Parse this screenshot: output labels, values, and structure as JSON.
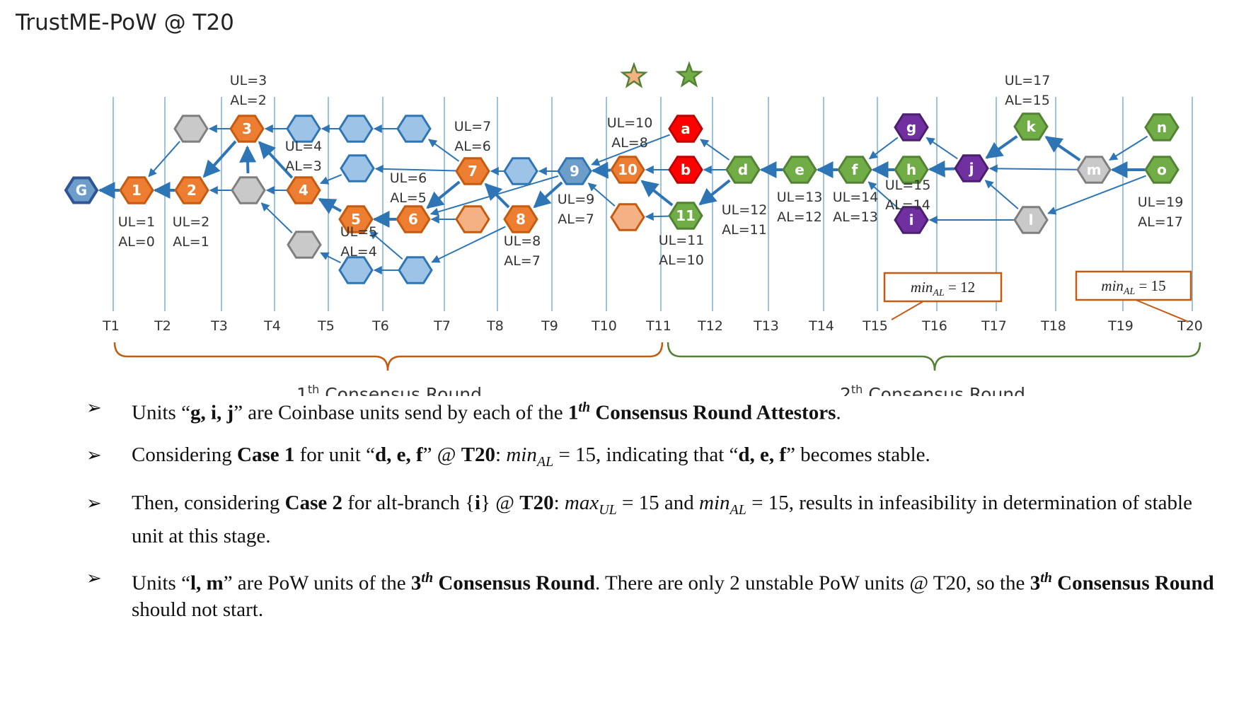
{
  "title": "TrustME-PoW @ T20",
  "time_ticks": [
    "T1",
    "T2",
    "T3",
    "T4",
    "T5",
    "T6",
    "T7",
    "T8",
    "T9",
    "T10",
    "T11",
    "T12",
    "T13",
    "T14",
    "T15",
    "T16",
    "T17",
    "T18",
    "T19",
    "T20"
  ],
  "units": {
    "genesis": "G",
    "u1": "1",
    "u2": "2",
    "u3": "3",
    "u4": "4",
    "u5": "5",
    "u6": "6",
    "u7": "7",
    "u8": "8",
    "u9": "9",
    "u10": "10",
    "u11": "11",
    "a": "a",
    "b": "b",
    "d": "d",
    "e": "e",
    "f": "f",
    "g": "g",
    "h": "h",
    "i": "i",
    "j": "j",
    "k": "k",
    "l": "l",
    "m": "m",
    "n": "n",
    "o": "o"
  },
  "labels": {
    "u1": [
      "UL=1",
      "AL=0"
    ],
    "u2": [
      "UL=2",
      "AL=1"
    ],
    "u3": [
      "UL=3",
      "AL=2"
    ],
    "u4": [
      "UL=4",
      "AL=3"
    ],
    "u5": [
      "UL=5",
      "AL=4"
    ],
    "u6": [
      "UL=6",
      "AL=5"
    ],
    "u7": [
      "UL=7",
      "AL=6"
    ],
    "u8": [
      "UL=8",
      "AL=7"
    ],
    "u9": [
      "UL=9",
      "AL=7"
    ],
    "u10": [
      "UL=10",
      "AL=8"
    ],
    "u11": [
      "UL=11",
      "AL=10"
    ],
    "d": [
      "UL=12",
      "AL=11"
    ],
    "e": [
      "UL=13",
      "AL=12"
    ],
    "f": [
      "UL=14",
      "AL=13"
    ],
    "h": [
      "UL=15",
      "AL=14"
    ],
    "k": [
      "UL=17",
      "AL=15"
    ],
    "o": [
      "UL=19",
      "AL=17"
    ]
  },
  "callouts": {
    "t15": {
      "var": "min",
      "sub": "AL",
      "rest": " = 12"
    },
    "t20": {
      "var": "min",
      "sub": "AL",
      "rest": " = 15"
    }
  },
  "rounds": {
    "first": {
      "num": "1",
      "sup": "th",
      "text": " Consensus Round"
    },
    "second": {
      "num": "2",
      "sup": "th",
      "text": " Consensus Round"
    }
  },
  "colors": {
    "orange_fill": "#f4b183",
    "orange_dark": "#ed7d31",
    "orange_stroke": "#c55a11",
    "blue_fill": "#9dc3e6",
    "blue_dark": "#6d9eca",
    "blue_stroke": "#2e75b6",
    "gray_fill": "#c9c9c9",
    "gray_stroke": "#7f7f7f",
    "red_fill": "#ff0000",
    "red_stroke": "#c00000",
    "green_fill": "#a9d18e",
    "green_dark": "#70ad47",
    "green_stroke": "#548235",
    "purple_fill": "#7030a0",
    "purple_stroke": "#4b1f6f",
    "arrow": "#2e75b6",
    "line": "#2e75b6",
    "brace1": "#c55a11",
    "brace2": "#548235"
  },
  "icons": {
    "bullet": "arrow-bullet-icon",
    "star": "star-icon"
  },
  "bullets": [
    {
      "icon": "➢",
      "parts": [
        {
          "t": "Units “"
        },
        {
          "t": "g, i, j",
          "b": true
        },
        {
          "t": "” are Coinbase units send by each of the "
        },
        {
          "t": "1",
          "b": true
        },
        {
          "t": "th",
          "sup": true,
          "b": true,
          "i": true
        },
        {
          "t": " Consensus Round  Attestors",
          "b": true
        },
        {
          "t": "."
        }
      ]
    },
    {
      "icon": "➢",
      "parts": [
        {
          "t": "Considering "
        },
        {
          "t": "Case 1",
          "b": true
        },
        {
          "t": " for unit “"
        },
        {
          "t": "d, e, f",
          "b": true
        },
        {
          "t": "” @ "
        },
        {
          "t": "T20",
          "b": true
        },
        {
          "t": ": "
        },
        {
          "t": "min",
          "i": true
        },
        {
          "t": "AL",
          "sub": true,
          "i": true
        },
        {
          "t": " = 15, indicating that “"
        },
        {
          "t": "d, e, f",
          "b": true
        },
        {
          "t": "” becomes stable."
        }
      ]
    },
    {
      "icon": "➢",
      "parts": [
        {
          "t": "Then, considering "
        },
        {
          "t": "Case 2",
          "b": true
        },
        {
          "t": " for alt-branch {"
        },
        {
          "t": "i",
          "b": true
        },
        {
          "t": "} @ "
        },
        {
          "t": "T20",
          "b": true
        },
        {
          "t": ": "
        },
        {
          "t": "max",
          "i": true
        },
        {
          "t": "UL",
          "sub": true,
          "i": true
        },
        {
          "t": " = 15 and "
        },
        {
          "t": "min",
          "i": true
        },
        {
          "t": "AL",
          "sub": true,
          "i": true
        },
        {
          "t": " = 15, results in infeasibility in determination of stable unit at this stage."
        }
      ]
    },
    {
      "icon": "➢",
      "parts": [
        {
          "t": "Units “"
        },
        {
          "t": "l, m",
          "b": true
        },
        {
          "t": "” are PoW units of the "
        },
        {
          "t": "3",
          "b": true
        },
        {
          "t": "th",
          "sup": true,
          "b": true,
          "i": true
        },
        {
          "t": " Consensus Round",
          "b": true
        },
        {
          "t": ". There are only 2 unstable PoW units @ T20, so the "
        },
        {
          "t": "3",
          "b": true
        },
        {
          "t": "th",
          "sup": true,
          "b": true,
          "i": true
        },
        {
          "t": " Consensus Round",
          "b": true
        },
        {
          "t": " should not start."
        }
      ]
    }
  ]
}
